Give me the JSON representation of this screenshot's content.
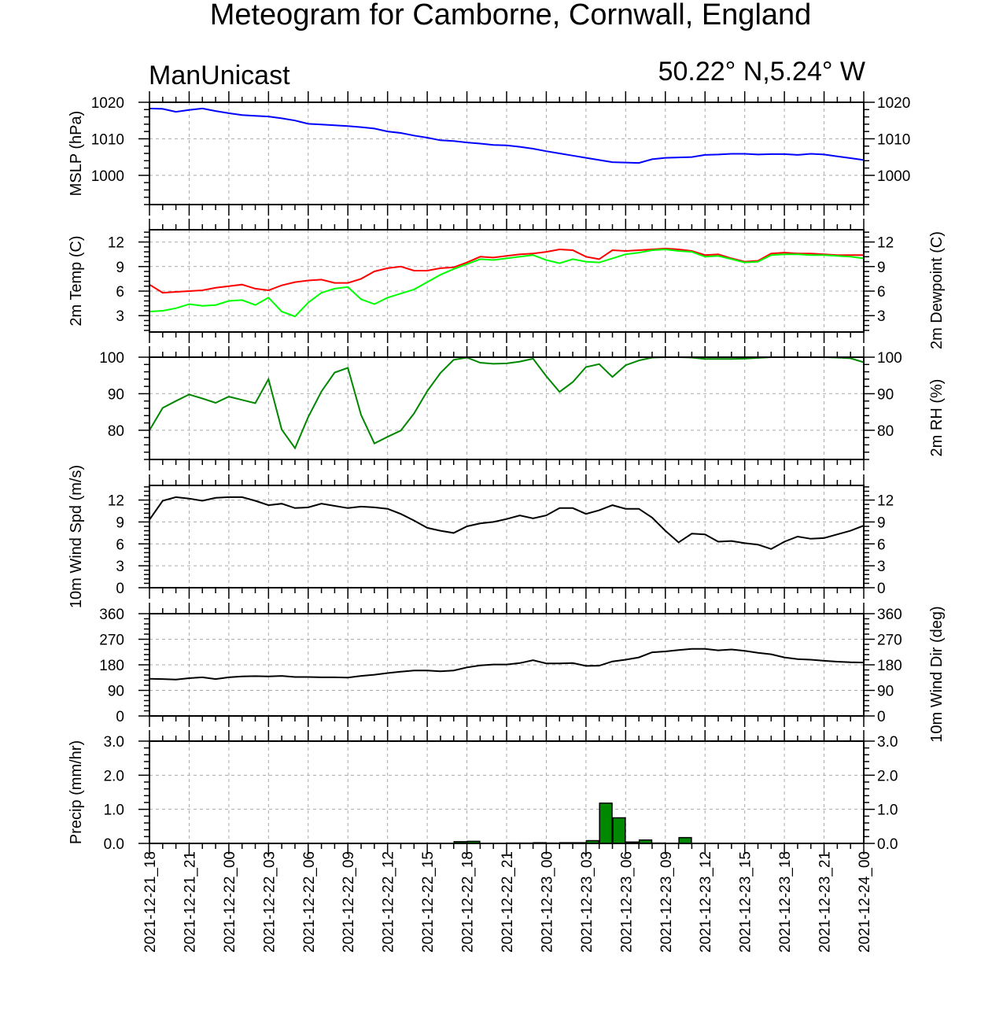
{
  "title": "Meteogram for Camborne, Cornwall, England",
  "model": "ManUnicast",
  "location": "50.22° N,5.24° W",
  "colors": {
    "mslp": "#0000ff",
    "temp": "#ff0000",
    "dewpoint": "#00ff00",
    "rh": "#008800",
    "wind": "#000000",
    "precip": "#008800"
  },
  "chart_data": [
    {
      "type": "line",
      "ylabel": "MSLP (hPa)",
      "ylabel_right": "",
      "yticks": [
        1000,
        1010,
        1020
      ],
      "ylim": [
        992,
        1020
      ],
      "grid": true,
      "series": [
        {
          "color": "#0000ff",
          "x": [
            0,
            1,
            2,
            3,
            4,
            5,
            6,
            7,
            8,
            9,
            10,
            11,
            12,
            13,
            14,
            15,
            16,
            17,
            18,
            19,
            20,
            21,
            22,
            23,
            24,
            25,
            26,
            27,
            28,
            29,
            30,
            31,
            32,
            33,
            34,
            35,
            36,
            37,
            38,
            39,
            40,
            41,
            42,
            43,
            44,
            45,
            46,
            47,
            48,
            49,
            50,
            51,
            52,
            53,
            54
          ],
          "y": [
            1018.3,
            1018.2,
            1017.4,
            1017.9,
            1018.3,
            1017.6,
            1017.0,
            1016.5,
            1016.3,
            1016.1,
            1015.6,
            1015.0,
            1014.1,
            1013.9,
            1013.7,
            1013.5,
            1013.2,
            1012.8,
            1012.0,
            1011.6,
            1010.9,
            1010.3,
            1009.6,
            1009.4,
            1009.0,
            1008.7,
            1008.3,
            1008.2,
            1007.8,
            1007.3,
            1006.6,
            1006.0,
            1005.4,
            1004.8,
            1004.2,
            1003.6,
            1003.5,
            1003.4,
            1004.4,
            1004.8,
            1004.9,
            1005.0,
            1005.6,
            1005.7,
            1005.9,
            1005.9,
            1005.7,
            1005.8,
            1005.8,
            1005.6,
            1005.9,
            1005.7,
            1005.2,
            1004.7,
            1004.2
          ]
        }
      ]
    },
    {
      "type": "line",
      "ylabel": "2m Temp (C)",
      "ylabel_right": "2m Dewpoint (C)",
      "yticks": [
        3,
        6,
        9,
        12
      ],
      "ylim": [
        1,
        13.5
      ],
      "grid": true,
      "series": [
        {
          "color": "#ff0000",
          "x": [
            0,
            1,
            2,
            3,
            4,
            5,
            6,
            7,
            8,
            9,
            10,
            11,
            12,
            13,
            14,
            15,
            16,
            17,
            18,
            19,
            20,
            21,
            22,
            23,
            24,
            25,
            26,
            27,
            28,
            29,
            30,
            31,
            32,
            33,
            34,
            35,
            36,
            37,
            38,
            39,
            40,
            41,
            42,
            43,
            44,
            45,
            46,
            47,
            48,
            49,
            50,
            51,
            52,
            53,
            54
          ],
          "y": [
            6.8,
            5.8,
            5.9,
            6.0,
            6.1,
            6.4,
            6.6,
            6.8,
            6.3,
            6.1,
            6.7,
            7.1,
            7.3,
            7.4,
            7.0,
            7.0,
            7.5,
            8.4,
            8.8,
            9.0,
            8.5,
            8.5,
            8.8,
            8.9,
            9.5,
            10.2,
            10.1,
            10.3,
            10.5,
            10.6,
            10.8,
            11.1,
            11.0,
            10.2,
            9.9,
            11.0,
            10.9,
            11.0,
            11.1,
            11.2,
            11.1,
            10.9,
            10.4,
            10.5,
            10.0,
            9.6,
            9.7,
            10.6,
            10.7,
            10.6,
            10.6,
            10.5,
            10.4,
            10.4,
            10.4
          ]
        },
        {
          "color": "#00ff00",
          "x": [
            0,
            1,
            2,
            3,
            4,
            5,
            6,
            7,
            8,
            9,
            10,
            11,
            12,
            13,
            14,
            15,
            16,
            17,
            18,
            19,
            20,
            21,
            22,
            23,
            24,
            25,
            26,
            27,
            28,
            29,
            30,
            31,
            32,
            33,
            34,
            35,
            36,
            37,
            38,
            39,
            40,
            41,
            42,
            43,
            44,
            45,
            46,
            47,
            48,
            49,
            50,
            51,
            52,
            53,
            54
          ],
          "y": [
            3.5,
            3.6,
            3.9,
            4.4,
            4.2,
            4.3,
            4.8,
            4.9,
            4.3,
            5.2,
            3.5,
            2.9,
            4.6,
            5.8,
            6.3,
            6.5,
            5.0,
            4.4,
            5.2,
            5.7,
            6.2,
            7.1,
            8.0,
            8.7,
            9.3,
            9.9,
            9.8,
            10.0,
            10.2,
            10.4,
            9.8,
            9.4,
            9.9,
            9.6,
            9.5,
            10.0,
            10.5,
            10.7,
            11.0,
            11.1,
            10.9,
            10.8,
            10.2,
            10.3,
            9.9,
            9.5,
            9.6,
            10.4,
            10.5,
            10.5,
            10.4,
            10.4,
            10.3,
            10.2,
            10.0
          ]
        }
      ]
    },
    {
      "type": "line",
      "ylabel": "",
      "ylabel_right": "2m RH (%)",
      "yticks": [
        80,
        90,
        100
      ],
      "ylim": [
        72,
        100
      ],
      "grid": true,
      "series": [
        {
          "color": "#008800",
          "x": [
            0,
            1,
            2,
            3,
            4,
            5,
            6,
            7,
            8,
            9,
            10,
            11,
            12,
            13,
            14,
            15,
            16,
            17,
            18,
            19,
            20,
            21,
            22,
            23,
            24,
            25,
            26,
            27,
            28,
            29,
            30,
            31,
            32,
            33,
            34,
            35,
            36,
            37,
            38,
            39,
            40,
            41,
            42,
            43,
            44,
            45,
            46,
            47,
            48,
            49,
            50,
            51,
            52,
            53,
            54
          ],
          "y": [
            80.0,
            86.1,
            88.0,
            89.8,
            88.7,
            87.5,
            89.2,
            88.3,
            87.4,
            94.0,
            80.2,
            75.1,
            83.6,
            90.6,
            95.8,
            97.1,
            84.2,
            76.4,
            78.2,
            79.9,
            84.6,
            90.7,
            95.7,
            99.3,
            99.9,
            98.5,
            98.2,
            98.3,
            98.8,
            99.6,
            94.8,
            90.5,
            93.2,
            97.3,
            98.1,
            94.6,
            97.8,
            99.1,
            99.9,
            100.0,
            100.0,
            99.9,
            99.5,
            99.5,
            99.5,
            99.6,
            99.8,
            100.0,
            100.0,
            100.0,
            100.0,
            100.0,
            99.9,
            99.7,
            98.6
          ]
        }
      ]
    },
    {
      "type": "line",
      "ylabel": "10m Wind Spd (m/s)",
      "ylabel_right": "",
      "yticks": [
        0,
        3,
        6,
        9,
        12
      ],
      "ylim": [
        0,
        14
      ],
      "grid": true,
      "series": [
        {
          "color": "#000000",
          "x": [
            0,
            1,
            2,
            3,
            4,
            5,
            6,
            7,
            8,
            9,
            10,
            11,
            12,
            13,
            14,
            15,
            16,
            17,
            18,
            19,
            20,
            21,
            22,
            23,
            24,
            25,
            26,
            27,
            28,
            29,
            30,
            31,
            32,
            33,
            34,
            35,
            36,
            37,
            38,
            39,
            40,
            41,
            42,
            43,
            44,
            45,
            46,
            47,
            48,
            49,
            50,
            51,
            52,
            53,
            54
          ],
          "y": [
            9.3,
            11.9,
            12.4,
            12.2,
            11.9,
            12.3,
            12.4,
            12.4,
            11.9,
            11.3,
            11.5,
            10.9,
            11.0,
            11.5,
            11.2,
            10.9,
            11.1,
            11.0,
            10.8,
            10.1,
            9.2,
            8.2,
            7.8,
            7.5,
            8.4,
            8.8,
            9.0,
            9.4,
            9.9,
            9.5,
            9.9,
            10.9,
            10.9,
            10.1,
            10.6,
            11.3,
            10.8,
            10.8,
            9.6,
            7.8,
            6.2,
            7.4,
            7.3,
            6.3,
            6.4,
            6.1,
            5.9,
            5.3,
            6.3,
            7.0,
            6.7,
            6.8,
            7.3,
            7.8,
            8.5
          ]
        }
      ]
    },
    {
      "type": "line",
      "ylabel": "",
      "ylabel_right": "10m Wind Dir (deg)",
      "yticks": [
        0,
        90,
        180,
        270,
        360
      ],
      "ylim": [
        0,
        360
      ],
      "grid": true,
      "series": [
        {
          "color": "#000000",
          "x": [
            0,
            1,
            2,
            3,
            4,
            5,
            6,
            7,
            8,
            9,
            10,
            11,
            12,
            13,
            14,
            15,
            16,
            17,
            18,
            19,
            20,
            21,
            22,
            23,
            24,
            25,
            26,
            27,
            28,
            29,
            30,
            31,
            32,
            33,
            34,
            35,
            36,
            37,
            38,
            39,
            40,
            41,
            42,
            43,
            44,
            45,
            46,
            47,
            48,
            49,
            50,
            51,
            52,
            53,
            54
          ],
          "y": [
            131,
            130,
            128,
            133,
            136,
            130,
            136,
            139,
            140,
            139,
            141,
            137,
            137,
            136,
            136,
            135,
            141,
            145,
            151,
            156,
            160,
            160,
            157,
            160,
            171,
            178,
            181,
            181,
            186,
            196,
            185,
            185,
            186,
            176,
            177,
            192,
            198,
            206,
            224,
            227,
            232,
            236,
            236,
            231,
            234,
            229,
            222,
            217,
            206,
            200,
            198,
            194,
            191,
            189,
            188
          ]
        }
      ]
    },
    {
      "type": "bar",
      "ylabel": "Precip (mm/hr)",
      "ylabel_right": "",
      "yticks": [
        0.0,
        1.0,
        2.0,
        3.0
      ],
      "ytick_labels": [
        "0.0",
        "1.0",
        "2.0",
        "3.0"
      ],
      "ylim": [
        0,
        3
      ],
      "grid": true,
      "series": [
        {
          "color": "#008800",
          "x": [
            23,
            24,
            27,
            28,
            29,
            30,
            31,
            32,
            33,
            34,
            35,
            36,
            37,
            38,
            40
          ],
          "y": [
            0.05,
            0.06,
            0.01,
            0.01,
            0.02,
            0.01,
            0.02,
            0.02,
            0.08,
            1.18,
            0.75,
            0.04,
            0.1,
            0.01,
            0.17
          ]
        }
      ]
    }
  ],
  "x_axis": {
    "tick_labels": [
      "2021-12-21_18",
      "2021-12-21_21",
      "2021-12-22_00",
      "2021-12-22_03",
      "2021-12-22_06",
      "2021-12-22_09",
      "2021-12-22_12",
      "2021-12-22_15",
      "2021-12-22_18",
      "2021-12-22_21",
      "2021-12-23_00",
      "2021-12-23_03",
      "2021-12-23_06",
      "2021-12-23_09",
      "2021-12-23_12",
      "2021-12-23_15",
      "2021-12-23_18",
      "2021-12-23_21",
      "2021-12-24_00"
    ]
  }
}
